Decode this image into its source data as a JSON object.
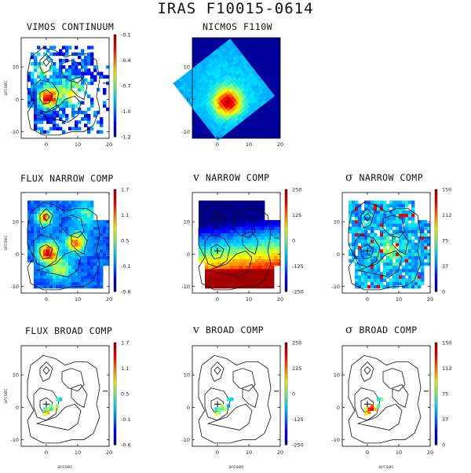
{
  "figure_title": "IRAS F10015-0614",
  "rows": [
    {
      "panels": [
        {
          "id": "vimos-continuum",
          "title_text": "VIMOS CONTINUUM",
          "greek": "",
          "colorbar_ticks": [
            "-0.1",
            "-0.4",
            "-0.7",
            "-1.0",
            "-1.2"
          ],
          "x_ticks": [
            "0",
            "10",
            "20"
          ],
          "y_ticks": [
            "10",
            "0",
            "-10"
          ],
          "show_xlabel": false,
          "show_ylabel": true
        },
        {
          "id": "nicmos-f110w",
          "title_text": "NICMOS F110W",
          "greek": "",
          "colorbar_ticks": [],
          "x_ticks": [
            "0",
            "10",
            "20"
          ],
          "y_ticks": [
            "10",
            "0",
            "-10"
          ],
          "show_xlabel": false,
          "show_ylabel": false
        }
      ]
    },
    {
      "panels": [
        {
          "id": "flux-narrow",
          "title_text": "FLUX NARROW COMP",
          "greek": "",
          "colorbar_ticks": [
            "1.7",
            "1.1",
            "0.5",
            "-0.1",
            "-0.6"
          ],
          "x_ticks": [
            "0",
            "10",
            "20"
          ],
          "y_ticks": [
            "10",
            "0",
            "-10"
          ],
          "show_xlabel": false,
          "show_ylabel": true
        },
        {
          "id": "v-narrow",
          "title_text": " NARROW COMP",
          "greek": "v",
          "colorbar_ticks": [
            "250",
            "125",
            "0",
            "-125",
            "-250"
          ],
          "x_ticks": [
            "0",
            "10",
            "20"
          ],
          "y_ticks": [
            "10",
            "0",
            "-10"
          ],
          "show_xlabel": false,
          "show_ylabel": false
        },
        {
          "id": "sigma-narrow",
          "title_text": " NARROW COMP",
          "greek": "σ",
          "colorbar_ticks": [
            "150",
            "112",
            "75",
            "37",
            "0"
          ],
          "x_ticks": [
            "0",
            "10",
            "20"
          ],
          "y_ticks": [
            "10",
            "0",
            "-10"
          ],
          "show_xlabel": false,
          "show_ylabel": false
        }
      ]
    },
    {
      "panels": [
        {
          "id": "flux-broad",
          "title_text": "FLUX BROAD COMP",
          "greek": "",
          "colorbar_ticks": [
            "1.7",
            "1.1",
            "0.5",
            "-0.1",
            "-0.6"
          ],
          "x_ticks": [
            "0",
            "10",
            "20"
          ],
          "y_ticks": [
            "10",
            "0",
            "-10"
          ],
          "show_xlabel": true,
          "show_ylabel": true
        },
        {
          "id": "v-broad",
          "title_text": " BROAD COMP",
          "greek": "v",
          "colorbar_ticks": [
            "250",
            "125",
            "0",
            "-125",
            "-250"
          ],
          "x_ticks": [
            "0",
            "10",
            "20"
          ],
          "y_ticks": [
            "10",
            "0",
            "-10"
          ],
          "show_xlabel": true,
          "show_ylabel": false
        },
        {
          "id": "sigma-broad",
          "title_text": " BROAD COMP",
          "greek": "σ",
          "colorbar_ticks": [
            "150",
            "112",
            "75",
            "37",
            "0"
          ],
          "x_ticks": [
            "0",
            "10",
            "20"
          ],
          "y_ticks": [
            "10",
            "0",
            "-10"
          ],
          "show_xlabel": true,
          "show_ylabel": false
        }
      ]
    }
  ],
  "axis_label": "arcsec",
  "colormap": [
    "#00008b",
    "#0000ff",
    "#0080ff",
    "#00e0ff",
    "#80ff80",
    "#ffff00",
    "#ff8000",
    "#ff0000",
    "#a00000"
  ],
  "nicmos_background": "#00009a"
}
